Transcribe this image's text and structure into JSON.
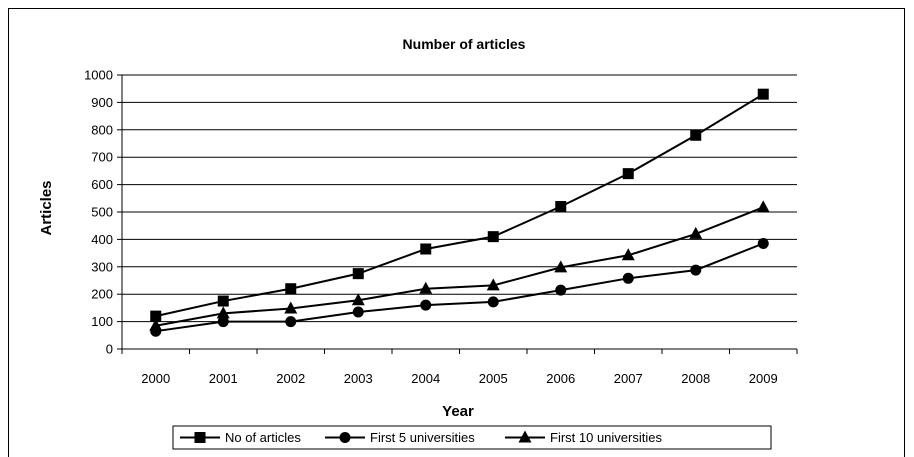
{
  "chart_data": {
    "type": "line",
    "title": "Number of articles",
    "xlabel": "Year",
    "ylabel": "Articles",
    "categories": [
      "2000",
      "2001",
      "2002",
      "2003",
      "2004",
      "2005",
      "2006",
      "2007",
      "2008",
      "2009"
    ],
    "ylim": [
      0,
      1000
    ],
    "yticks": [
      0,
      100,
      200,
      300,
      400,
      500,
      600,
      700,
      800,
      900,
      1000
    ],
    "grid": true,
    "legend_position": "bottom",
    "series": [
      {
        "name": "No of articles",
        "marker": "square",
        "values": [
          120,
          175,
          220,
          275,
          365,
          410,
          520,
          640,
          780,
          930
        ]
      },
      {
        "name": "First 5 universities",
        "marker": "circle",
        "values": [
          65,
          100,
          100,
          135,
          160,
          172,
          215,
          258,
          288,
          385
        ]
      },
      {
        "name": "First 10 universities",
        "marker": "triangle",
        "values": [
          85,
          130,
          148,
          178,
          220,
          232,
          298,
          342,
          420,
          517
        ]
      }
    ],
    "colors": {
      "line": "#000000",
      "grid": "#000000",
      "background": "#ffffff"
    }
  }
}
